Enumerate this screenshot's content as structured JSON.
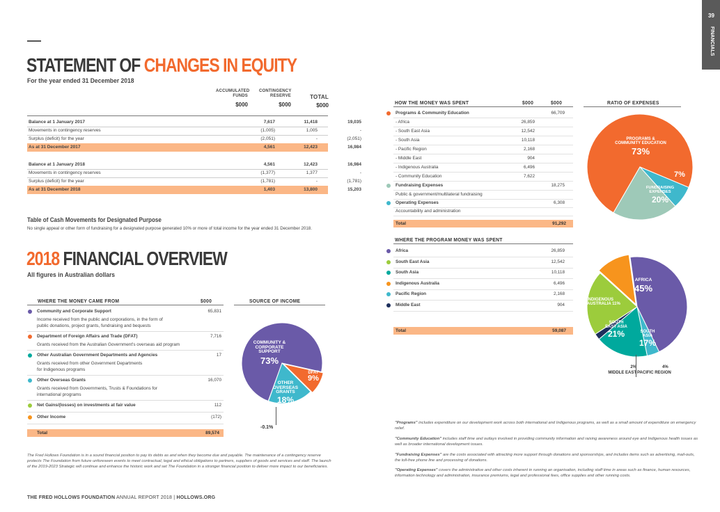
{
  "page": {
    "number": "39",
    "section": "FINANCIALS"
  },
  "footer": {
    "org": "THE FRED HOLLOWS FOUNDATION",
    "report": "ANNUAL REPORT 2018",
    "site": "HOLLOWS.ORG"
  },
  "equity": {
    "title_a": "STATEMENT OF ",
    "title_b": "CHANGES IN EQUITY",
    "subtitle": "For the year ended 31 December 2018",
    "cols": [
      {
        "h1": "ACCUMULATED",
        "h2": "FUNDS",
        "unit": "$000"
      },
      {
        "h1": "CONTINGENCY",
        "h2": "RESERVE",
        "unit": "$000"
      },
      {
        "h1": "",
        "h2": "TOTAL",
        "unit": "$000"
      }
    ],
    "rows": [
      {
        "label": "Balance at 1 January 2017",
        "v": [
          "7,617",
          "11,418",
          "19,035"
        ]
      },
      {
        "label": "Movements in contingency reserves",
        "v": [
          "(1,005)",
          "1,005",
          "-"
        ]
      },
      {
        "label": "Surplus (deficit) for the year",
        "v": [
          "(2,051)",
          "-",
          "(2,051)"
        ]
      },
      {
        "label": "As at 31 December 2017",
        "v": [
          "4,561",
          "12,423",
          "16,984"
        ]
      },
      {
        "label": "Balance at 1 January 2018",
        "v": [
          "4,561",
          "12,423",
          "16,984"
        ]
      },
      {
        "label": "Movements in contingency reserves",
        "v": [
          "(1,377)",
          "1,377",
          "-"
        ]
      },
      {
        "label": "Surplus (deficit) for the year",
        "v": [
          "(1,781)",
          "-",
          "(1,781)"
        ]
      },
      {
        "label": "As at 31 December 2018",
        "v": [
          "1,403",
          "13,800",
          "15,203"
        ]
      }
    ]
  },
  "cash": {
    "title": "Table of Cash Movements for Designated Purpose",
    "text": "No single appeal or other form of fundraising for a designated purpose generated 10% or more of total income for the year ended 31 December 2018."
  },
  "overview": {
    "title_a": "2018 ",
    "title_b": "FINANCIAL OVERVIEW",
    "subtitle": "All figures in Australian dollars"
  },
  "income": {
    "header": "WHERE THE MONEY CAME FROM",
    "unit": "$000",
    "chart_title": "SOURCE OF INCOME",
    "items": [
      {
        "label": "Community and Corporate Support",
        "value": "65,831",
        "desc": [
          "Income received from the public and corporations, in the form of",
          "public donations, project grants, fundraising and bequests"
        ],
        "color": "#6a5aa8"
      },
      {
        "label": "Department of Foreign Affairs and Trade (DFAT)",
        "value": "7,716",
        "desc": [
          "Grants received from the Australian Government's overseas aid program"
        ],
        "color": "#f26a2e"
      },
      {
        "label": "Other Australian Government Departments and Agencies",
        "value": "17",
        "desc": [
          "Grants received from other Government Departments",
          "for Indigenous programs"
        ],
        "color": "#00a99d"
      },
      {
        "label": "Other Overseas Grants",
        "value": "16,070",
        "desc": [
          "Grants received from Governments, Trusts & Foundations for",
          "international programs"
        ],
        "color": "#3fb8cc"
      },
      {
        "label": "Net Gains/(losses) on investments at fair value",
        "value": "112",
        "desc": [],
        "color": "#9ccc3c"
      },
      {
        "label": "Other Income",
        "value": "(172)",
        "desc": [],
        "color": "#f7941d"
      }
    ],
    "total_label": "Total",
    "total_value": "89,574"
  },
  "income_pie_labels": {
    "community": [
      "COMMUNITY &",
      "CORPORATE SUPPORT",
      "73%"
    ],
    "dfat": [
      "DFAT",
      "9%"
    ],
    "overseas": [
      "OTHER",
      "OVERSEAS",
      "GRANTS",
      "18%"
    ],
    "neg": "-0.1%"
  },
  "chart_data": [
    {
      "type": "pie",
      "title": "SOURCE OF INCOME",
      "categories": [
        "Community & Corporate Support",
        "DFAT",
        "Other Overseas Grants",
        "Other"
      ],
      "values": [
        73,
        9,
        18,
        -0.1
      ]
    },
    {
      "type": "pie",
      "title": "RATIO OF EXPENSES",
      "categories": [
        "Programs & Community Education",
        "Operating Expenses",
        "Fundraising Expenses"
      ],
      "values": [
        73,
        7,
        20
      ]
    },
    {
      "type": "pie",
      "title": "Where the program money was spent",
      "categories": [
        "Africa",
        "South East Asia",
        "South Asia",
        "Middle East",
        "Indigenous Australia",
        "Pacific Region"
      ],
      "values": [
        45,
        21,
        17,
        2,
        11,
        4
      ]
    }
  ],
  "spent": {
    "header": "HOW THE MONEY WAS SPENT",
    "unit1": "$000",
    "unit2": "$000",
    "chart_title": "RATIO OF EXPENSES",
    "rows": [
      {
        "label": "Programs & Community Education",
        "v1": "",
        "v2": "66,709",
        "bold": true,
        "dot": "#f26a2e"
      },
      {
        "label": "- Africa",
        "v1": "26,859",
        "v2": ""
      },
      {
        "label": "- South East Asia",
        "v1": "12,542",
        "v2": ""
      },
      {
        "label": "- South Asia",
        "v1": "10,118",
        "v2": ""
      },
      {
        "label": "- Pacific Region",
        "v1": "2,168",
        "v2": ""
      },
      {
        "label": "- Middle East",
        "v1": "904",
        "v2": ""
      },
      {
        "label": "- Indigenous Australia",
        "v1": "6,496",
        "v2": ""
      },
      {
        "label": "- Community Education",
        "v1": "7,622",
        "v2": ""
      },
      {
        "label": "Fundraising Expenses",
        "v1": "",
        "v2": "18,275",
        "bold": true,
        "dot": "#9ec9b8"
      },
      {
        "label": "Public & government/multilateral fundraising",
        "v1": "",
        "v2": ""
      },
      {
        "label": "Operating Expenses",
        "v1": "",
        "v2": "6,308",
        "bold": true,
        "dot": "#3fb8cc"
      },
      {
        "label": "Accountability and administration",
        "v1": "",
        "v2": ""
      }
    ],
    "total_label": "Total",
    "total_value": "91,292"
  },
  "ratio_pie_labels": {
    "programs": [
      "PROGRAMS &",
      "COMMUNITY EDUCATION",
      "73%"
    ],
    "operating": "7%",
    "fundraising": [
      "FUNDRAISING",
      "EXPENSES",
      "20%"
    ]
  },
  "program": {
    "header": "WHERE THE PROGRAM MONEY WAS SPENT",
    "rows": [
      {
        "label": "Africa",
        "value": "26,859",
        "color": "#6a5aa8"
      },
      {
        "label": "South East Asia",
        "value": "12,542",
        "color": "#9ccc3c"
      },
      {
        "label": "South Asia",
        "value": "10,118",
        "color": "#00a99d"
      },
      {
        "label": "Indigenous Australia",
        "value": "6,496",
        "color": "#f7941d"
      },
      {
        "label": "Pacific Region",
        "value": "2,168",
        "color": "#3fb8cc"
      },
      {
        "label": "Middle East",
        "value": "904",
        "color": "#1d2f5c"
      }
    ],
    "total_label": "Total",
    "total_value": "59,087"
  },
  "program_pie_labels": {
    "africa": [
      "AFRICA",
      "45%"
    ],
    "indigenous": [
      "INDIGENOUS",
      "AUSTRALIA 11%"
    ],
    "sea": [
      "SOUTH",
      "EAST ASIA",
      "21%"
    ],
    "sa": [
      "SOUTH",
      "ASIA",
      "17%"
    ],
    "me": [
      "2%",
      "MIDDLE EAST"
    ],
    "pr": [
      "4%",
      "PACIFIC REGION"
    ]
  },
  "notes": [
    {
      "term": "\"Programs\"",
      "text": " includes expenditure on our development work across both international and Indigenous programs, as well as a small amount of expenditure on emergency relief."
    },
    {
      "term": "\"Community Education\"",
      "text": " includes staff time and outlays involved in providing community information and raising awareness around eye and Indigenous health issues as well as broader international development issues."
    },
    {
      "term": "\"Fundraising Expenses\"",
      "text": " are the costs associated with attracting more support through donations and sponsorships, and includes items such as advertising, mail-outs, the toll-free phone line and processing of donations."
    },
    {
      "term": "\"Operating Expenses\"",
      "text": " covers the administrative and other costs inherent in running an organisation, including staff time in areas such as finance, human resources, information technology and administration, insurance premiums, legal and professional fees, office supplies and other running costs."
    }
  ],
  "foundation_note": "The Fred Hollows Foundation is in a sound financial position to pay its debts as and when they become due and payable. The maintenance of a contingency reserve protects The Foundation from future unforeseen events to meet contractual, legal and ethical obligations to partners, suppliers of goods and services and staff. The launch of the 2019-2023 Strategic will continue and enhance the historic work and set The Foundation in a stronger financial position to deliver more impact to our beneficiaries."
}
